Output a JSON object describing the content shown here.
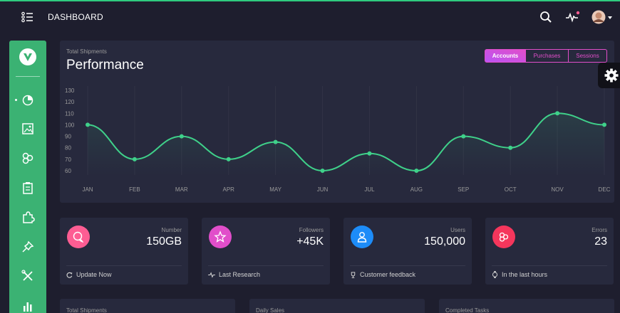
{
  "navbar": {
    "brand": "DASHBOARD",
    "icons": [
      "list-icon",
      "search-icon",
      "pulse-icon",
      "avatar-icon"
    ]
  },
  "sidebar": {
    "items": [
      "chart-pie-icon",
      "image-icon",
      "atom-icon",
      "clipboard-icon",
      "puzzle-icon",
      "pin-icon",
      "tools-icon",
      "bar-chart-icon"
    ]
  },
  "chart_card": {
    "subtitle": "Total Shipments",
    "title": "Performance",
    "tabs": [
      {
        "label": "Accounts",
        "active": true
      },
      {
        "label": "Purchases",
        "active": false
      },
      {
        "label": "Sessions",
        "active": false
      }
    ]
  },
  "chart_data": {
    "type": "line",
    "categories": [
      "JAN",
      "FEB",
      "MAR",
      "APR",
      "MAY",
      "JUN",
      "JUL",
      "AUG",
      "SEP",
      "OCT",
      "NOV",
      "DEC"
    ],
    "series": [
      {
        "values": [
          100,
          70,
          90,
          70,
          85,
          60,
          75,
          60,
          90,
          80,
          110,
          100
        ]
      }
    ],
    "yticks": [
      60,
      70,
      80,
      90,
      100,
      110,
      120,
      130
    ],
    "ylim": [
      60,
      130
    ],
    "line_color": "#3fd18a",
    "grid": true
  },
  "stats": [
    {
      "label": "Number",
      "value": "150GB",
      "footer": "Update Now",
      "icon": "chat-icon",
      "footer_icon": "refresh-icon",
      "color": "#fd5d93"
    },
    {
      "label": "Followers",
      "value": "+45K",
      "footer": "Last Research",
      "icon": "star-icon",
      "footer_icon": "pulse-icon",
      "color": "#e14eca"
    },
    {
      "label": "Users",
      "value": "150,000",
      "footer": "Customer feedback",
      "icon": "user-icon",
      "footer_icon": "trophy-icon",
      "color": "#1d8cf8"
    },
    {
      "label": "Errors",
      "value": "23",
      "footer": "In the last hours",
      "icon": "atom-icon",
      "footer_icon": "watch-icon",
      "color": "#f5365c"
    }
  ],
  "bottom_cards": [
    {
      "label": "Total Shipments"
    },
    {
      "label": "Daily Sales"
    },
    {
      "label": "Completed Tasks"
    }
  ]
}
